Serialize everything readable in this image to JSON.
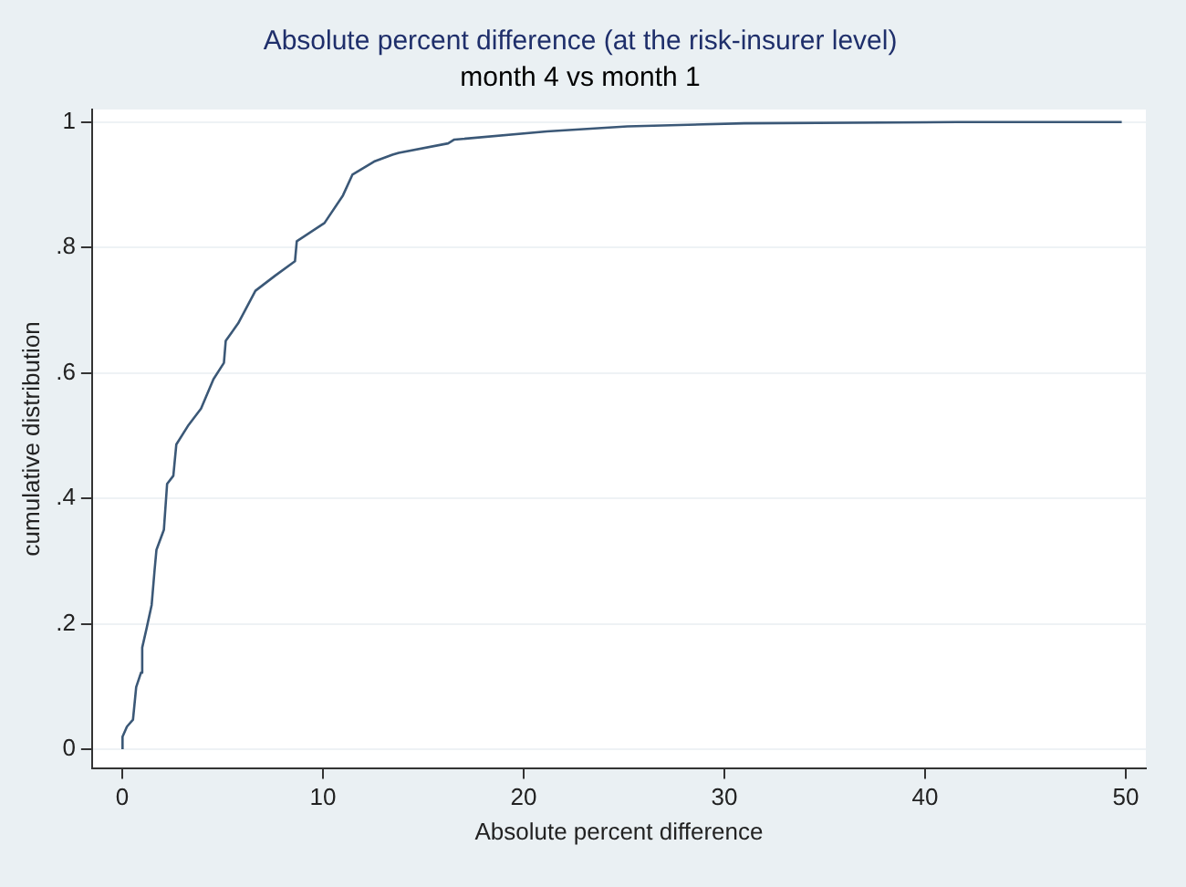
{
  "chart_data": {
    "type": "line",
    "title": "Absolute percent difference (at the risk-insurer level)",
    "subtitle": "month 4 vs month 1",
    "xlabel": "Absolute percent difference",
    "ylabel": "cumulative distribution",
    "x": [
      0.02,
      0.02,
      0.24,
      0.54,
      0.7,
      0.94,
      1.0,
      1.22,
      1.47,
      1.62,
      1.71,
      2.08,
      2.24,
      2.55,
      2.7,
      3.31,
      3.93,
      4.55,
      5.07,
      5.16,
      5.78,
      6.64,
      7.62,
      8.61,
      8.7,
      10.08,
      11.0,
      11.47,
      12.55,
      13.47,
      13.78,
      16.24,
      16.55,
      21.16,
      25.17,
      31.0,
      41.6,
      49.8
    ],
    "series": [
      {
        "color": "#3b5877",
        "values": [
          0,
          0.02,
          0.036,
          0.047,
          0.099,
          0.122,
          0.162,
          0.193,
          0.23,
          0.287,
          0.318,
          0.35,
          0.423,
          0.436,
          0.486,
          0.517,
          0.543,
          0.59,
          0.616,
          0.651,
          0.679,
          0.731,
          0.755,
          0.778,
          0.81,
          0.839,
          0.883,
          0.916,
          0.937,
          0.948,
          0.951,
          0.966,
          0.972,
          0.985,
          0.993,
          0.998,
          1.0,
          1.0
        ]
      }
    ],
    "xlim": [
      -1.5,
      51
    ],
    "xticks": [
      0,
      10,
      20,
      30,
      40,
      50
    ],
    "ylim": [
      -0.03,
      1.02
    ],
    "yticks": [
      {
        "value": 0,
        "label": "0"
      },
      {
        "value": 0.2,
        "label": ".2"
      },
      {
        "value": 0.4,
        "label": ".4"
      },
      {
        "value": 0.6,
        "label": ".6"
      },
      {
        "value": 0.8,
        "label": ".8"
      },
      {
        "value": 1,
        "label": "1"
      }
    ],
    "grid": "y",
    "legend": false,
    "marker": "none",
    "line_style": "solid"
  }
}
